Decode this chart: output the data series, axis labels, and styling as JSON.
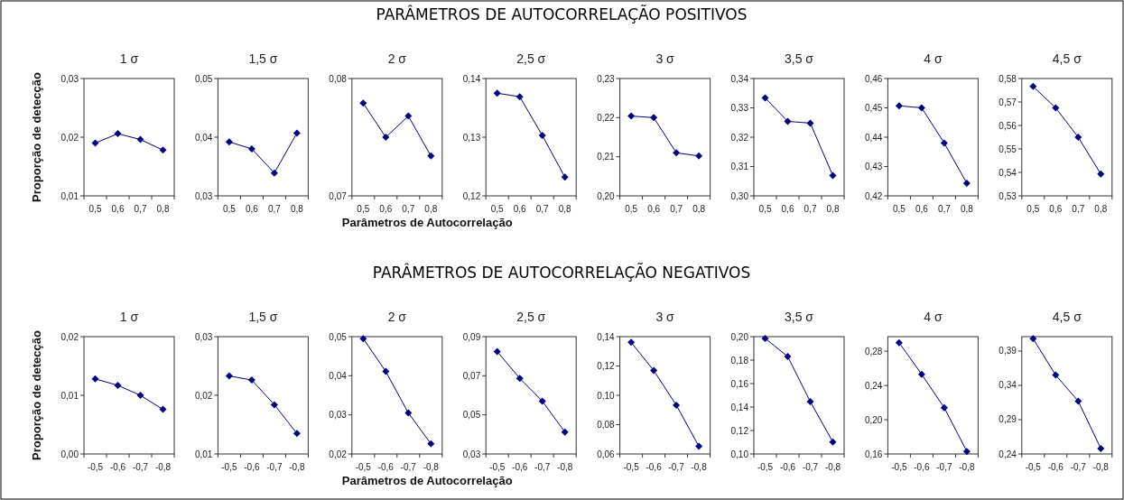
{
  "chart_data": [
    {
      "type": "line",
      "title": "1 σ",
      "ylabel": "Proporção de detecção",
      "annotations": [
        "PARÂMETROS DE AUTOCORRELAÇÃO POSITIVOS"
      ],
      "categories": [
        "0,5",
        "0,6",
        "0,7",
        "0,8"
      ],
      "series": [
        {
          "color": "#000080",
          "values": [
            0.019,
            0.0206,
            0.0196,
            0.0178
          ]
        }
      ],
      "ylim": [
        0.01,
        0.03
      ],
      "yticks": [
        {
          "value": 0.01,
          "label": "0,01"
        },
        {
          "value": 0.02,
          "label": "0,02"
        },
        {
          "value": 0.03,
          "label": "0,03"
        }
      ],
      "marker": "diamond",
      "grid": false
    },
    {
      "type": "line",
      "title": "1,5 σ",
      "categories": [
        "0,5",
        "0,6",
        "0,7",
        "0,8"
      ],
      "series": [
        {
          "color": "#000080",
          "values": [
            0.0392,
            0.038,
            0.0339,
            0.0407
          ]
        }
      ],
      "ylim": [
        0.03,
        0.05
      ],
      "yticks": [
        {
          "value": 0.03,
          "label": "0,03"
        },
        {
          "value": 0.04,
          "label": "0,04"
        },
        {
          "value": 0.05,
          "label": "0,05"
        }
      ],
      "marker": "diamond",
      "grid": false
    },
    {
      "type": "line",
      "title": "2 σ",
      "categories": [
        "0,5",
        "0,6",
        "0,7",
        "0,8"
      ],
      "series": [
        {
          "color": "#000080",
          "values": [
            0.0779,
            0.075,
            0.0768,
            0.0734
          ]
        }
      ],
      "ylim": [
        0.07,
        0.08
      ],
      "yticks": [
        {
          "value": 0.07,
          "label": "0,07"
        },
        {
          "value": 0.08,
          "label": "0,08"
        }
      ],
      "marker": "diamond",
      "grid": false
    },
    {
      "type": "line",
      "title": "2,5 σ",
      "xlabel": "Parâmetros de Autocorrelação",
      "categories": [
        "0,5",
        "0,6",
        "0,7",
        "0,8"
      ],
      "series": [
        {
          "color": "#000080",
          "values": [
            0.1375,
            0.1369,
            0.1303,
            0.1232
          ]
        }
      ],
      "ylim": [
        0.12,
        0.14
      ],
      "yticks": [
        {
          "value": 0.12,
          "label": "0,12"
        },
        {
          "value": 0.13,
          "label": "0,13"
        },
        {
          "value": 0.14,
          "label": "0,14"
        }
      ],
      "marker": "diamond",
      "grid": false
    },
    {
      "type": "line",
      "title": "3 σ",
      "categories": [
        "0,5",
        "0,6",
        "0,7",
        "0,8"
      ],
      "series": [
        {
          "color": "#000080",
          "values": [
            0.2204,
            0.22,
            0.211,
            0.2102
          ]
        }
      ],
      "ylim": [
        0.2,
        0.23
      ],
      "yticks": [
        {
          "value": 0.2,
          "label": "0,20"
        },
        {
          "value": 0.21,
          "label": "0,21"
        },
        {
          "value": 0.22,
          "label": "0,22"
        },
        {
          "value": 0.23,
          "label": "0,23"
        }
      ],
      "marker": "diamond",
      "grid": false
    },
    {
      "type": "line",
      "title": "3,5 σ",
      "categories": [
        "0,5",
        "0,6",
        "0,7",
        "0,8"
      ],
      "series": [
        {
          "color": "#000080",
          "values": [
            0.3334,
            0.3254,
            0.3248,
            0.3069
          ]
        }
      ],
      "ylim": [
        0.3,
        0.34
      ],
      "yticks": [
        {
          "value": 0.3,
          "label": "0,30"
        },
        {
          "value": 0.31,
          "label": "0,31"
        },
        {
          "value": 0.32,
          "label": "0,32"
        },
        {
          "value": 0.33,
          "label": "0,33"
        },
        {
          "value": 0.34,
          "label": "0,34"
        }
      ],
      "marker": "diamond",
      "grid": false
    },
    {
      "type": "line",
      "title": "4 σ",
      "categories": [
        "0,5",
        "0,6",
        "0,7",
        "0,8"
      ],
      "series": [
        {
          "color": "#000080",
          "values": [
            0.4507,
            0.45,
            0.438,
            0.4243
          ]
        }
      ],
      "ylim": [
        0.42,
        0.46
      ],
      "yticks": [
        {
          "value": 0.42,
          "label": "0,42"
        },
        {
          "value": 0.43,
          "label": "0,43"
        },
        {
          "value": 0.44,
          "label": "0,44"
        },
        {
          "value": 0.45,
          "label": "0,45"
        },
        {
          "value": 0.46,
          "label": "0,46"
        }
      ],
      "marker": "diamond",
      "grid": false
    },
    {
      "type": "line",
      "title": "4,5 σ",
      "categories": [
        "0,5",
        "0,6",
        "0,7",
        "0,8"
      ],
      "series": [
        {
          "color": "#000080",
          "values": [
            0.5766,
            0.5675,
            0.555,
            0.5393
          ]
        }
      ],
      "ylim": [
        0.53,
        0.58
      ],
      "yticks": [
        {
          "value": 0.53,
          "label": "0,53"
        },
        {
          "value": 0.54,
          "label": "0,54"
        },
        {
          "value": 0.55,
          "label": "0,55"
        },
        {
          "value": 0.56,
          "label": "0,56"
        },
        {
          "value": 0.57,
          "label": "0,57"
        },
        {
          "value": 0.58,
          "label": "0,58"
        }
      ],
      "marker": "diamond",
      "grid": false
    },
    {
      "type": "line",
      "title": "1 σ",
      "ylabel": "Proporção de detecção",
      "annotations": [
        "PARÂMETROS DE AUTOCORRELAÇÃO NEGATIVOS"
      ],
      "categories": [
        "-0,5",
        "-0,6",
        "-0,7",
        "-0,8"
      ],
      "series": [
        {
          "color": "#000080",
          "values": [
            0.0128,
            0.0117,
            0.01,
            0.0076
          ]
        }
      ],
      "ylim": [
        0.0,
        0.02
      ],
      "yticks": [
        {
          "value": 0.0,
          "label": "0,00"
        },
        {
          "value": 0.01,
          "label": "0,01"
        },
        {
          "value": 0.02,
          "label": "0,02"
        }
      ],
      "marker": "diamond",
      "grid": false
    },
    {
      "type": "line",
      "title": "1,5 σ",
      "categories": [
        "-0,5",
        "-0,6",
        "-0,7",
        "-0,8"
      ],
      "series": [
        {
          "color": "#000080",
          "values": [
            0.0233,
            0.0226,
            0.0184,
            0.0135
          ]
        }
      ],
      "ylim": [
        0.01,
        0.03
      ],
      "yticks": [
        {
          "value": 0.01,
          "label": "0,01"
        },
        {
          "value": 0.02,
          "label": "0,02"
        },
        {
          "value": 0.03,
          "label": "0,03"
        }
      ],
      "marker": "diamond",
      "grid": false
    },
    {
      "type": "line",
      "title": "2 σ",
      "categories": [
        "-0,5",
        "-0,6",
        "-0,7",
        "-0,8"
      ],
      "series": [
        {
          "color": "#000080",
          "values": [
            0.0495,
            0.0411,
            0.0305,
            0.0226
          ]
        }
      ],
      "ylim": [
        0.02,
        0.05
      ],
      "yticks": [
        {
          "value": 0.02,
          "label": "0,02"
        },
        {
          "value": 0.03,
          "label": "0,03"
        },
        {
          "value": 0.04,
          "label": "0,04"
        },
        {
          "value": 0.05,
          "label": "0,05"
        }
      ],
      "marker": "diamond",
      "grid": false
    },
    {
      "type": "line",
      "title": "2,5 σ",
      "xlabel": "Parâmetros de Autocorrelação",
      "categories": [
        "-0,5",
        "-0,6",
        "-0,7",
        "-0,8"
      ],
      "series": [
        {
          "color": "#000080",
          "values": [
            0.0824,
            0.0687,
            0.057,
            0.0412
          ]
        }
      ],
      "ylim": [
        0.03,
        0.09
      ],
      "yticks": [
        {
          "value": 0.03,
          "label": "0,03"
        },
        {
          "value": 0.05,
          "label": "0,05"
        },
        {
          "value": 0.07,
          "label": "0,07"
        },
        {
          "value": 0.09,
          "label": "0,09"
        }
      ],
      "marker": "diamond",
      "grid": false
    },
    {
      "type": "line",
      "title": "3 σ",
      "categories": [
        "-0,5",
        "-0,6",
        "-0,7",
        "-0,8"
      ],
      "series": [
        {
          "color": "#000080",
          "values": [
            0.1361,
            0.1169,
            0.0933,
            0.0652
          ]
        }
      ],
      "ylim": [
        0.06,
        0.14
      ],
      "yticks": [
        {
          "value": 0.06,
          "label": "0,06"
        },
        {
          "value": 0.08,
          "label": "0,08"
        },
        {
          "value": 0.1,
          "label": "0,10"
        },
        {
          "value": 0.12,
          "label": "0,12"
        },
        {
          "value": 0.14,
          "label": "0,14"
        }
      ],
      "marker": "diamond",
      "grid": false
    },
    {
      "type": "line",
      "title": "3,5 σ",
      "categories": [
        "-0,5",
        "-0,6",
        "-0,7",
        "-0,8"
      ],
      "series": [
        {
          "color": "#000080",
          "values": [
            0.1985,
            0.1831,
            0.1446,
            0.1102
          ]
        }
      ],
      "ylim": [
        0.1,
        0.2
      ],
      "yticks": [
        {
          "value": 0.1,
          "label": "0,10"
        },
        {
          "value": 0.12,
          "label": "0,12"
        },
        {
          "value": 0.14,
          "label": "0,14"
        },
        {
          "value": 0.16,
          "label": "0,16"
        },
        {
          "value": 0.18,
          "label": "0,18"
        },
        {
          "value": 0.2,
          "label": "0,20"
        }
      ],
      "marker": "diamond",
      "grid": false
    },
    {
      "type": "line",
      "title": "4 σ",
      "categories": [
        "-0,5",
        "-0,6",
        "-0,7",
        "-0,8"
      ],
      "series": [
        {
          "color": "#000080",
          "values": [
            0.29,
            0.253,
            0.214,
            0.163
          ]
        }
      ],
      "ylim": [
        0.16,
        0.297
      ],
      "yticks": [
        {
          "value": 0.16,
          "label": "0,16"
        },
        {
          "value": 0.2,
          "label": "0,20"
        },
        {
          "value": 0.24,
          "label": "0,24"
        },
        {
          "value": 0.28,
          "label": "0,28"
        }
      ],
      "marker": "diamond",
      "grid": false
    },
    {
      "type": "line",
      "title": "4,5 σ",
      "categories": [
        "-0,5",
        "-0,6",
        "-0,7",
        "-0,8"
      ],
      "series": [
        {
          "color": "#000080",
          "values": [
            0.408,
            0.355,
            0.317,
            0.248
          ]
        }
      ],
      "ylim": [
        0.24,
        0.411
      ],
      "yticks": [
        {
          "value": 0.24,
          "label": "0,24"
        },
        {
          "value": 0.29,
          "label": "0,29"
        },
        {
          "value": 0.34,
          "label": "0,34"
        },
        {
          "value": 0.39,
          "label": "0,39"
        }
      ],
      "marker": "diamond",
      "grid": false
    }
  ]
}
